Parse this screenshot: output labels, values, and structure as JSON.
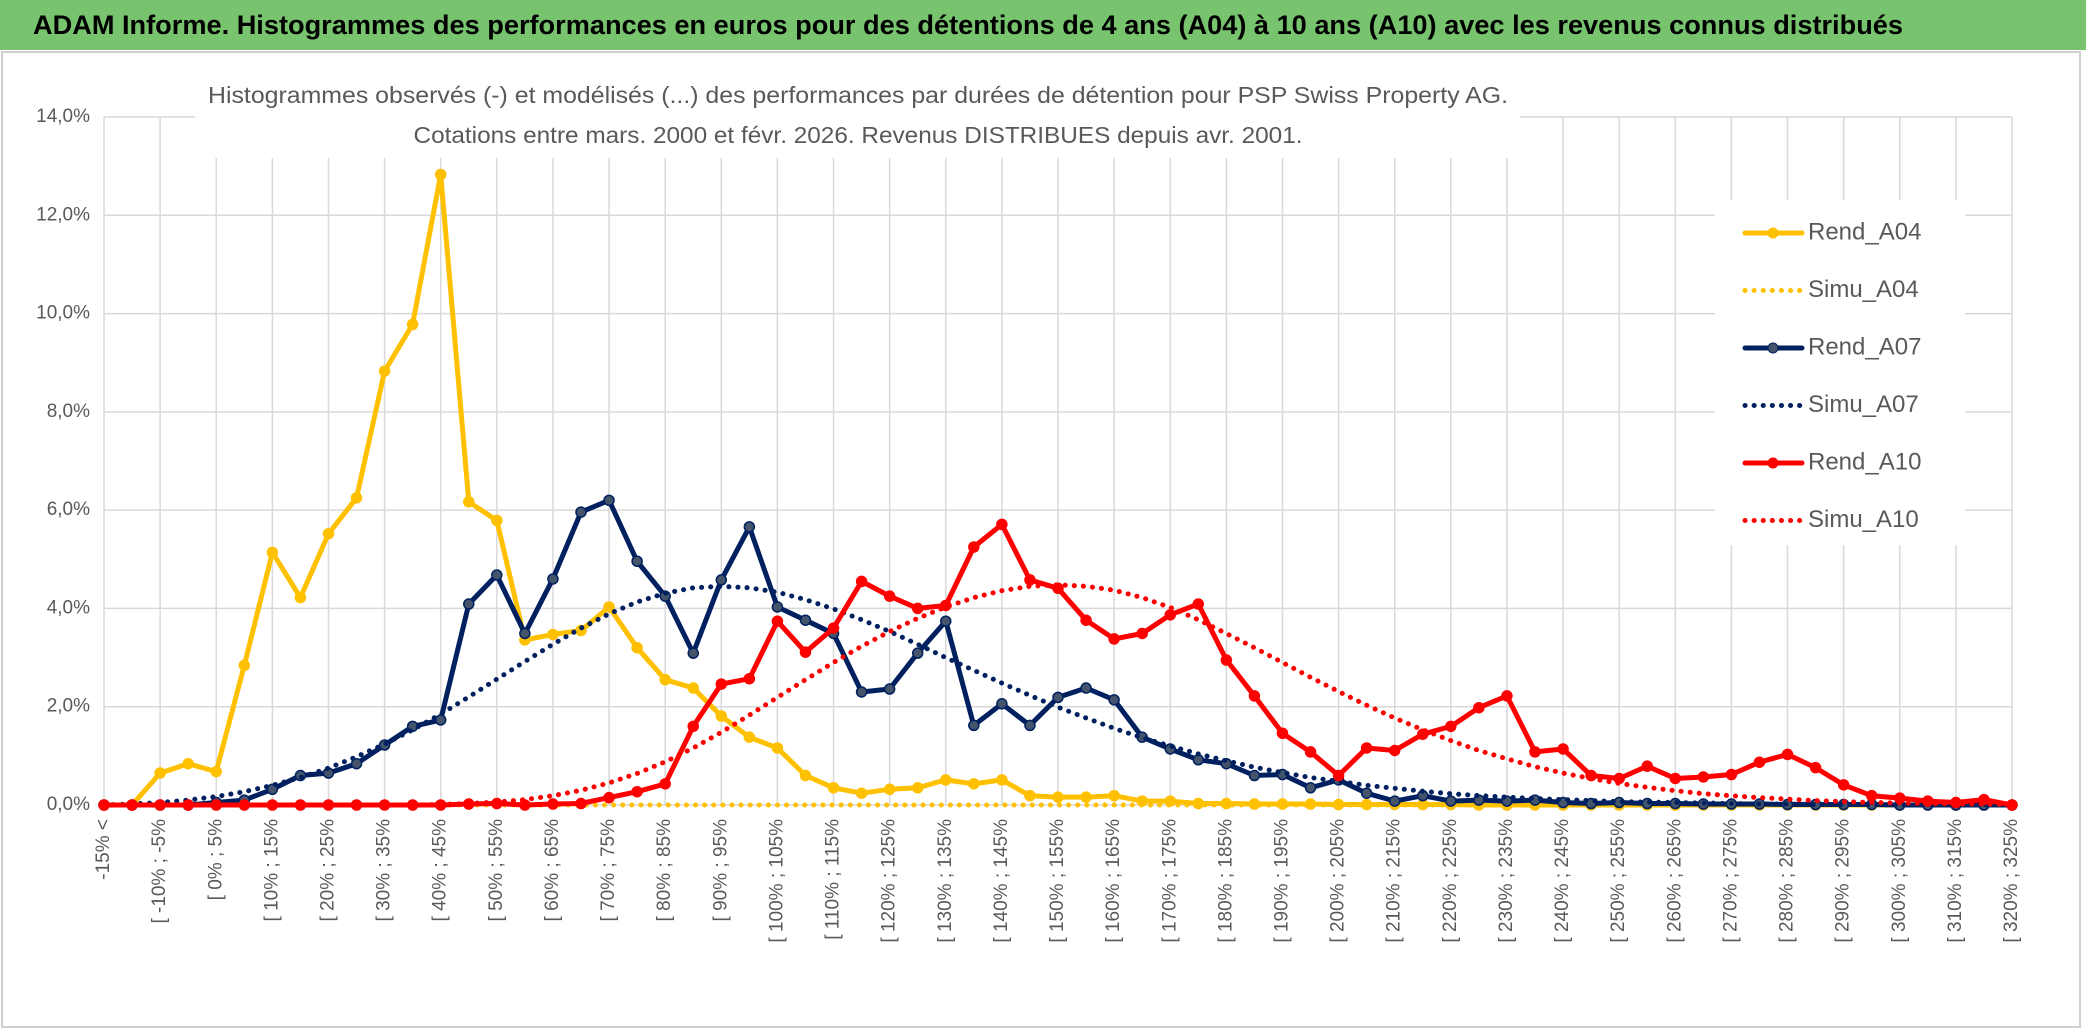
{
  "chart_data": {
    "type": "line",
    "title": "ADAM Informe. Histogrammes des performances en euros pour des détentions de 4 ans (A04) à 10 ans (A10) avec les revenus connus distribués",
    "chart_title": [
      "Histogrammes observés (-) et modélisés (...) des performances par durées de détention pour PSP Swiss Property AG.",
      "Cotations entre mars. 2000 et févr. 2026. Revenus DISTRIBUES depuis avr. 2001."
    ],
    "categories": [
      "-15% <",
      null,
      "[ -10% ; -5%",
      null,
      "[ 0% ; 5%",
      null,
      "[ 10% ; 15%",
      null,
      "[ 20% ; 25%",
      null,
      "[ 30% ; 35%",
      null,
      "[ 40% ; 45%",
      null,
      "[ 50% ; 55%",
      null,
      "[ 60% ; 65%",
      null,
      "[ 70% ; 75%",
      null,
      "[ 80% ; 85%",
      null,
      "[ 90% ; 95%",
      null,
      "[ 100% ; 105%",
      null,
      "[ 110% ; 115%",
      null,
      "[ 120% ; 125%",
      null,
      "[ 130% ; 135%",
      null,
      "[ 140% ; 145%",
      null,
      "[ 150% ; 155%",
      null,
      "[ 160% ; 165%",
      null,
      "[ 170% ; 175%",
      null,
      "[ 180% ; 185%",
      null,
      "[ 190% ; 195%",
      null,
      "[ 200% ; 205%",
      null,
      "[ 210% ; 215%",
      null,
      "[ 220% ; 225%",
      null,
      "[ 230% ; 235%",
      null,
      "[ 240% ; 245%",
      null,
      "[ 250% ; 255%",
      null,
      "[ 260% ; 265%",
      null,
      "[ 270% ; 275%",
      null,
      "[ 280% ; 285%",
      null,
      "[ 290% ; 295%",
      null,
      "[ 300% ; 305%",
      null,
      "[ 310% ; 315%",
      null,
      "[ 320% ; 325%"
    ],
    "series": [
      {
        "name": "Rend_A04",
        "color": "#ffc000",
        "style": "solid",
        "markers": true,
        "values": [
          0,
          0,
          0.65,
          0.84,
          0.68,
          2.84,
          5.14,
          4.22,
          5.52,
          6.25,
          8.83,
          9.78,
          12.83,
          6.17,
          5.79,
          3.36,
          3.47,
          3.55,
          4.03,
          3.2,
          2.55,
          2.38,
          1.81,
          1.38,
          1.16,
          0.6,
          0.35,
          0.24,
          0.32,
          0.35,
          0.51,
          0.43,
          0.51,
          0.19,
          0.16,
          0.16,
          0.19,
          0.08,
          0.08,
          0.03,
          0.03,
          0.02,
          0.02,
          0.02,
          0.01,
          0.01,
          0.01,
          0.01,
          0.01,
          0,
          0,
          0,
          0,
          0,
          0,
          0,
          0,
          0,
          0,
          0,
          0,
          0,
          0,
          0,
          0,
          0,
          0,
          0,
          0
        ]
      },
      {
        "name": "Simu_A04",
        "color": "#ffc000",
        "style": "dotted",
        "markers": false,
        "values": [
          0,
          0,
          0,
          0,
          0,
          0,
          0,
          0,
          0,
          0,
          0,
          0,
          0,
          0,
          0,
          0,
          0,
          0,
          0,
          0,
          0,
          0,
          0,
          0,
          0,
          0,
          0,
          0,
          0,
          0,
          0,
          0,
          0,
          0,
          0,
          0,
          0,
          0,
          0,
          0,
          0,
          0,
          0,
          0,
          0,
          0,
          0,
          0,
          0,
          0,
          0,
          0,
          0,
          0,
          0,
          0,
          0,
          0,
          0,
          0,
          0,
          0,
          0,
          0,
          0,
          0,
          0,
          0,
          0
        ]
      },
      {
        "name": "Rend_A07",
        "color": "#002060",
        "style": "solid",
        "markers": true,
        "values": [
          0,
          0,
          0,
          0,
          0.05,
          0.1,
          0.32,
          0.6,
          0.65,
          0.84,
          1.22,
          1.6,
          1.73,
          4.09,
          4.68,
          3.49,
          4.6,
          5.96,
          6.2,
          4.96,
          4.25,
          3.09,
          4.58,
          5.66,
          4.03,
          3.76,
          3.49,
          2.3,
          2.36,
          3.09,
          3.74,
          1.62,
          2.06,
          1.62,
          2.19,
          2.38,
          2.14,
          1.38,
          1.14,
          0.92,
          0.84,
          0.6,
          0.62,
          0.35,
          0.51,
          0.24,
          0.08,
          0.19,
          0.08,
          0.1,
          0.08,
          0.1,
          0.05,
          0.03,
          0.05,
          0.03,
          0.03,
          0.02,
          0.02,
          0.02,
          0.01,
          0.01,
          0.01,
          0.01,
          0,
          0,
          0,
          0,
          0
        ]
      },
      {
        "name": "Simu_A07",
        "color": "#002060",
        "style": "dotted",
        "markers": false,
        "values": [
          0,
          0.02,
          0.05,
          0.1,
          0.17,
          0.27,
          0.4,
          0.56,
          0.75,
          0.98,
          1.24,
          1.53,
          1.85,
          2.2,
          2.56,
          2.92,
          3.27,
          3.6,
          3.89,
          4.13,
          4.31,
          4.42,
          4.45,
          4.42,
          4.33,
          4.18,
          3.99,
          3.77,
          3.53,
          3.27,
          3,
          2.74,
          2.48,
          2.23,
          1.99,
          1.77,
          1.56,
          1.37,
          1.2,
          1.04,
          0.9,
          0.77,
          0.66,
          0.56,
          0.48,
          0.4,
          0.34,
          0.28,
          0.23,
          0.19,
          0.16,
          0.13,
          0.11,
          0.09,
          0.07,
          0.06,
          0.05,
          0.04,
          0.03,
          0.02,
          0.02,
          0.01,
          0.01,
          0.01,
          0,
          0,
          0,
          0,
          0
        ]
      },
      {
        "name": "Rend_A10",
        "color": "#ff0000",
        "style": "solid",
        "markers": true,
        "values": [
          0,
          0,
          0,
          0,
          0,
          0,
          0,
          0,
          0,
          0,
          0,
          0,
          0,
          0.02,
          0.03,
          0,
          0.02,
          0.03,
          0.15,
          0.27,
          0.43,
          1.6,
          2.46,
          2.57,
          3.74,
          3.11,
          3.6,
          4.55,
          4.25,
          4,
          4.06,
          5.25,
          5.71,
          4.58,
          4.41,
          3.76,
          3.38,
          3.49,
          3.87,
          4.09,
          2.95,
          2.22,
          1.46,
          1.08,
          0.6,
          1.16,
          1.11,
          1.44,
          1.6,
          1.98,
          2.22,
          1.08,
          1.14,
          0.6,
          0.54,
          0.79,
          0.54,
          0.57,
          0.62,
          0.87,
          1.03,
          0.76,
          0.41,
          0.19,
          0.14,
          0.08,
          0.05,
          0.11,
          0
        ]
      },
      {
        "name": "Simu_A10",
        "color": "#ff0000",
        "style": "dotted",
        "markers": false,
        "values": [
          0,
          0,
          0,
          0,
          0,
          0,
          0,
          0,
          0,
          0,
          0,
          0,
          0.01,
          0.03,
          0.06,
          0.11,
          0.19,
          0.3,
          0.45,
          0.64,
          0.88,
          1.16,
          1.48,
          1.83,
          2.19,
          2.55,
          2.9,
          3.23,
          3.53,
          3.8,
          4.03,
          4.22,
          4.36,
          4.45,
          4.48,
          4.45,
          4.37,
          4.22,
          4.02,
          3.77,
          3.49,
          3.2,
          2.9,
          2.6,
          2.31,
          2.03,
          1.77,
          1.53,
          1.31,
          1.11,
          0.94,
          0.78,
          0.65,
          0.54,
          0.44,
          0.36,
          0.29,
          0.23,
          0.19,
          0.15,
          0.12,
          0.09,
          0.07,
          0.05,
          0.04,
          0.03,
          0.02,
          0.02,
          0.01
        ]
      }
    ],
    "ylim": [
      0,
      14
    ],
    "yticks": [
      {
        "value": 0,
        "label": "0,0%"
      },
      {
        "value": 2,
        "label": "2,0%"
      },
      {
        "value": 4,
        "label": "4,0%"
      },
      {
        "value": 6,
        "label": "6,0%"
      },
      {
        "value": 8,
        "label": "8,0%"
      },
      {
        "value": 10,
        "label": "10,0%"
      },
      {
        "value": 12,
        "label": "12,0%"
      },
      {
        "value": 14,
        "label": "14,0%"
      }
    ],
    "grid": true,
    "legend_position": "right",
    "header_color": "#77c36e"
  }
}
